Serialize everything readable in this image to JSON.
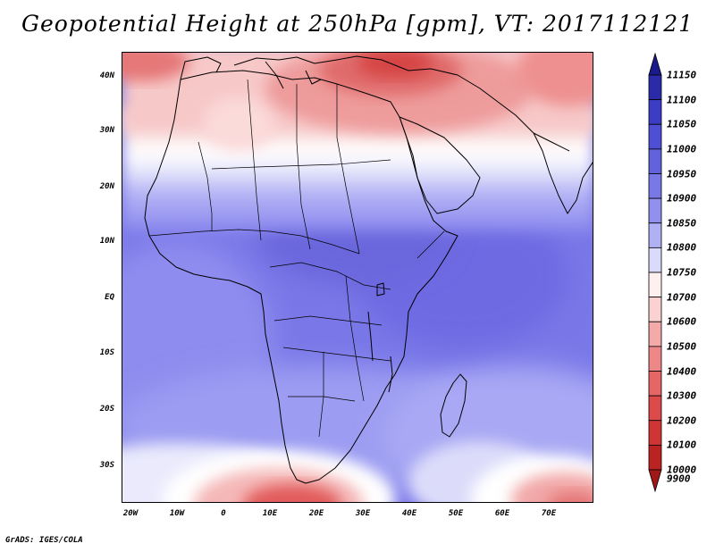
{
  "title": "Geopotential Height at 250hPa [gpm], VT: 2017112121",
  "credit": "GrADS: IGES/COLA",
  "map": {
    "lon_range": [
      -23,
      80
    ],
    "lat_range": [
      -37,
      45
    ],
    "lat_labels": [
      "40N",
      "30N",
      "20N",
      "10N",
      "EQ",
      "10S",
      "20S",
      "30S"
    ],
    "lon_labels": [
      "20W",
      "10W",
      "0",
      "10E",
      "20E",
      "30E",
      "40E",
      "50E",
      "60E",
      "70E"
    ]
  },
  "colorbar": {
    "levels": [
      "11150",
      "11100",
      "11050",
      "11000",
      "10950",
      "10900",
      "10850",
      "10800",
      "10750",
      "10700",
      "10600",
      "10500",
      "10400",
      "10300",
      "10200",
      "10100",
      "10000",
      "9900"
    ],
    "colors": [
      "#1a1a8c",
      "#2b2baa",
      "#3c3cc4",
      "#4f4fd6",
      "#6262dc",
      "#7878e6",
      "#9090ee",
      "#b0b0f4",
      "#dadafa",
      "#fff0f0",
      "#fbd2d2",
      "#f5aaaa",
      "#ee8787",
      "#e66666",
      "#dd4a4a",
      "#d03535",
      "#bb2222",
      "#a01818"
    ]
  },
  "palette": {
    "land_blue": "#7a78e8",
    "deep_blue": "#6a66dc",
    "light_blue": "#9c9cf2",
    "pale": "#e6e6fb",
    "white": "#ffffff",
    "pink": "#f7c4c4",
    "red": "#e57777",
    "deep_red": "#d94545"
  }
}
